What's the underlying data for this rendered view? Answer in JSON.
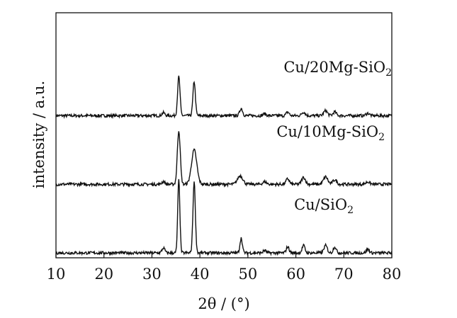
{
  "chart_data": {
    "type": "line",
    "xlabel": "2θ / (°)",
    "ylabel": "intensity / a.u.",
    "xlim": [
      10,
      80
    ],
    "xticks": [
      "10",
      "20",
      "30",
      "40",
      "50",
      "60",
      "70",
      "80"
    ],
    "yticks_shown": false,
    "grid": false,
    "legend": "inline labels above each curve",
    "series": [
      {
        "name": "Cu/20Mg-SiO₂",
        "label_parts": {
          "main": "Cu/20Mg-SiO",
          "sub": "2"
        },
        "baseline": 0.58,
        "peaks": [
          {
            "x": 32.4,
            "h": 0.012,
            "w": 0.3
          },
          {
            "x": 35.6,
            "h": 0.16,
            "w": 0.25
          },
          {
            "x": 38.8,
            "h": 0.14,
            "w": 0.25
          },
          {
            "x": 48.6,
            "h": 0.03,
            "w": 0.3
          },
          {
            "x": 53.5,
            "h": 0.008,
            "w": 0.3
          },
          {
            "x": 58.3,
            "h": 0.015,
            "w": 0.3
          },
          {
            "x": 61.6,
            "h": 0.015,
            "w": 0.35
          },
          {
            "x": 66.2,
            "h": 0.02,
            "w": 0.4
          },
          {
            "x": 68.1,
            "h": 0.015,
            "w": 0.35
          },
          {
            "x": 75.0,
            "h": 0.01,
            "w": 0.35
          }
        ]
      },
      {
        "name": "Cu/10Mg-SiO₂",
        "label_parts": {
          "main": "Cu/10Mg-SiO",
          "sub": "2"
        },
        "baseline": 0.3,
        "peaks": [
          {
            "x": 32.4,
            "h": 0.012,
            "w": 0.3
          },
          {
            "x": 35.6,
            "h": 0.22,
            "w": 0.3
          },
          {
            "x": 38.8,
            "h": 0.14,
            "w": 0.55
          },
          {
            "x": 48.4,
            "h": 0.035,
            "w": 0.55
          },
          {
            "x": 53.5,
            "h": 0.01,
            "w": 0.4
          },
          {
            "x": 58.3,
            "h": 0.022,
            "w": 0.35
          },
          {
            "x": 61.6,
            "h": 0.028,
            "w": 0.4
          },
          {
            "x": 66.2,
            "h": 0.03,
            "w": 0.45
          },
          {
            "x": 68.1,
            "h": 0.018,
            "w": 0.4
          },
          {
            "x": 75.0,
            "h": 0.01,
            "w": 0.4
          }
        ]
      },
      {
        "name": "Cu/SiO₂",
        "label_parts": {
          "main": "Cu/SiO",
          "sub": "2"
        },
        "baseline": 0.02,
        "peaks": [
          {
            "x": 32.4,
            "h": 0.02,
            "w": 0.3
          },
          {
            "x": 35.6,
            "h": 0.3,
            "w": 0.22
          },
          {
            "x": 38.8,
            "h": 0.29,
            "w": 0.25
          },
          {
            "x": 48.6,
            "h": 0.06,
            "w": 0.25
          },
          {
            "x": 53.5,
            "h": 0.01,
            "w": 0.3
          },
          {
            "x": 58.3,
            "h": 0.025,
            "w": 0.3
          },
          {
            "x": 61.6,
            "h": 0.03,
            "w": 0.3
          },
          {
            "x": 66.2,
            "h": 0.03,
            "w": 0.35
          },
          {
            "x": 68.1,
            "h": 0.025,
            "w": 0.3
          },
          {
            "x": 75.0,
            "h": 0.015,
            "w": 0.3
          }
        ]
      }
    ]
  },
  "colors": {
    "line": "#111111",
    "axis": "#111111",
    "background": "#ffffff"
  }
}
